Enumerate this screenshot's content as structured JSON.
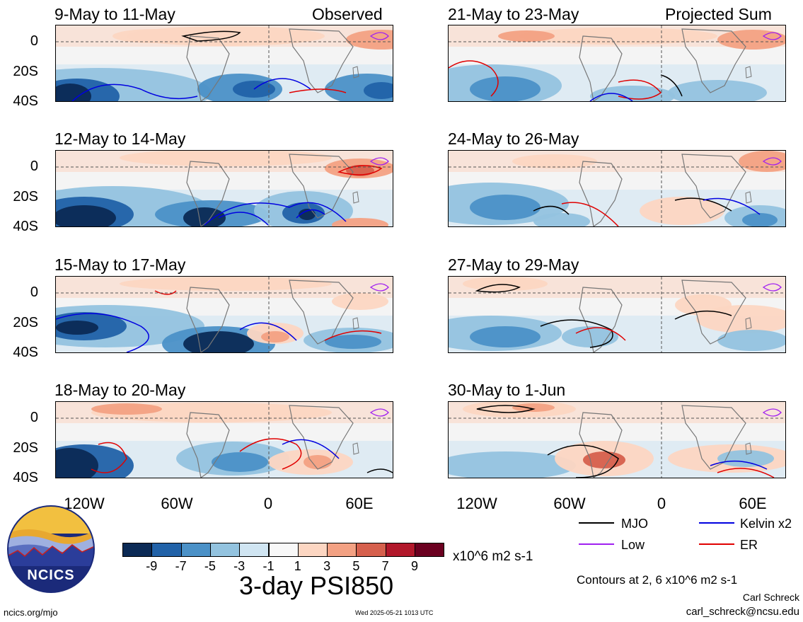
{
  "corner_labels": {
    "left": "Observed",
    "right": "Projected Sum"
  },
  "panels_left": [
    {
      "title": "9-May to 11-May"
    },
    {
      "title": "12-May to 14-May"
    },
    {
      "title": "15-May to 17-May"
    },
    {
      "title": "18-May to 20-May"
    }
  ],
  "panels_right": [
    {
      "title": "21-May to 23-May"
    },
    {
      "title": "24-May to 26-May"
    },
    {
      "title": "27-May to 29-May"
    },
    {
      "title": "30-May to 1-Jun"
    }
  ],
  "y_ticks": [
    "0",
    "20S",
    "40S"
  ],
  "x_ticks": [
    "120W",
    "60W",
    "0",
    "60E"
  ],
  "legend": {
    "mjo": "MJO",
    "kelvin": "Kelvin x2",
    "low": "Low",
    "er": "ER",
    "colors": {
      "mjo": "#000000",
      "kelvin": "#0000e0",
      "low": "#a020f0",
      "er": "#e00000"
    }
  },
  "colorbar": {
    "ticks": [
      "-9",
      "-7",
      "-5",
      "-3",
      "-1",
      "1",
      "3",
      "5",
      "7",
      "9"
    ],
    "units": "x10^6 m2 s-1",
    "colors": [
      "#0b2a55",
      "#2162a8",
      "#4b91c7",
      "#93c3df",
      "#d0e5f2",
      "#f8f8f8",
      "#fcd6c2",
      "#f3a183",
      "#d6604d",
      "#b2182b",
      "#6b0020"
    ]
  },
  "main_title": "3-day PSI850",
  "contours_note": "Contours at 2, 6 x10^6 m2 s-1",
  "author": "Carl Schreck",
  "email": "carl_schreck@ncsu.edu",
  "site": "ncics.org/mjo",
  "timestamp": "Wed 2025-05-21 1013 UTC",
  "logo_text": "NCICS"
}
